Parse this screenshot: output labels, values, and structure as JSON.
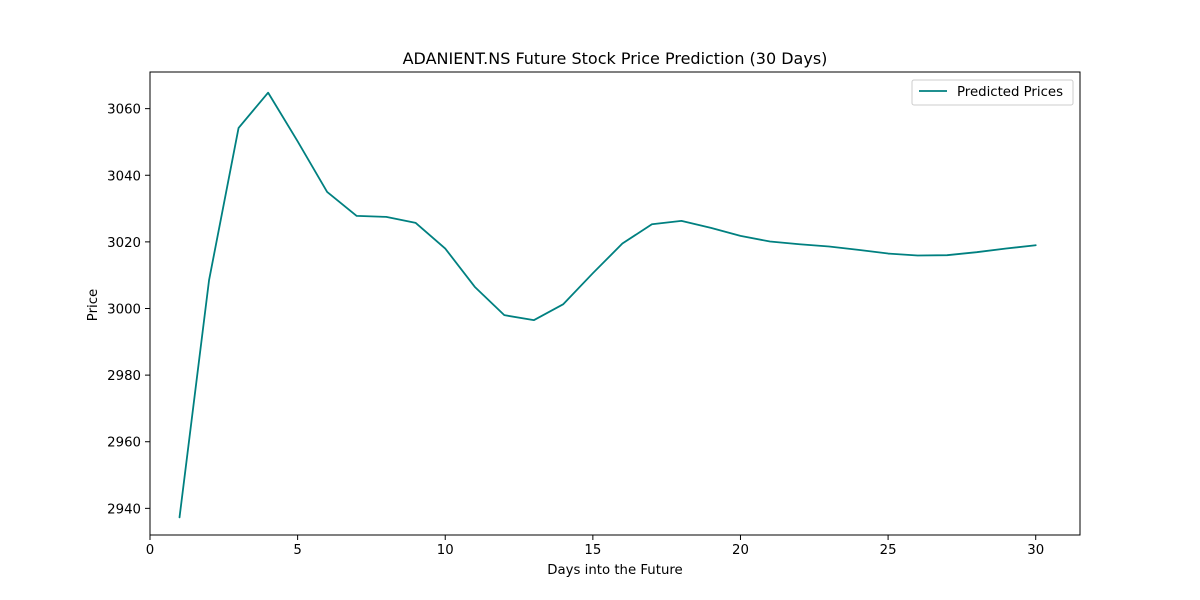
{
  "chart_data": {
    "type": "line",
    "title": "ADANIENT.NS Future Stock Price Prediction (30 Days)",
    "xlabel": "Days into the Future",
    "ylabel": "Price",
    "xlim": [
      0,
      31.5
    ],
    "ylim": [
      2932,
      3071
    ],
    "x_ticks": [
      0,
      5,
      10,
      15,
      20,
      25,
      30
    ],
    "y_ticks": [
      2940,
      2960,
      2980,
      3000,
      3020,
      3040,
      3060
    ],
    "grid": false,
    "legend": {
      "placement": "top-right"
    },
    "series": [
      {
        "name": "Predicted Prices",
        "color": "#008080",
        "x": [
          1,
          2,
          3,
          4,
          5,
          6,
          7,
          8,
          9,
          10,
          11,
          12,
          13,
          14,
          15,
          16,
          17,
          18,
          19,
          20,
          21,
          22,
          23,
          24,
          25,
          26,
          27,
          28,
          29,
          30
        ],
        "values": [
          2937.3,
          3008.5,
          3054.2,
          3064.8,
          3050.2,
          3035.0,
          3027.8,
          3027.5,
          3025.7,
          3018.0,
          3006.5,
          2998.0,
          2996.5,
          3001.3,
          3010.6,
          3019.5,
          3025.3,
          3026.3,
          3024.2,
          3021.8,
          3020.1,
          3019.3,
          3018.6,
          3017.6,
          3016.5,
          3015.9,
          3016.0,
          3016.9,
          3018.0,
          3019.0
        ]
      }
    ]
  }
}
